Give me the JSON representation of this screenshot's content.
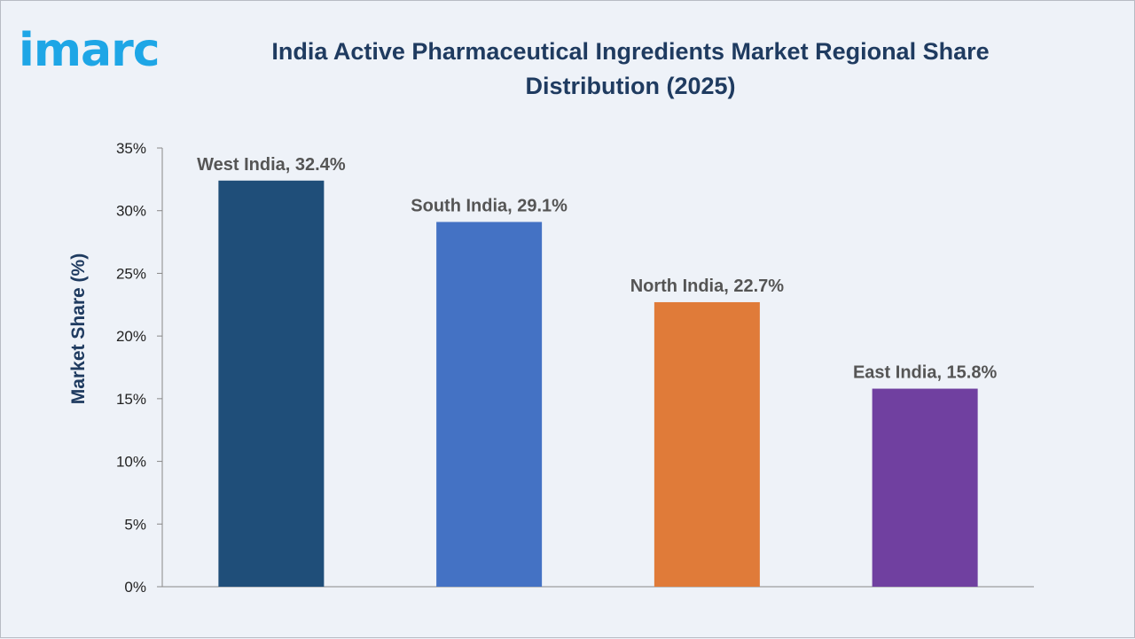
{
  "logo": {
    "text": "imarc"
  },
  "chart_data": {
    "type": "bar",
    "title": "India Active Pharmaceutical Ingredients Market Regional Share Distribution (2025)",
    "xlabel": "",
    "ylabel": "Market Share (%)",
    "ylim": [
      0,
      35
    ],
    "yticks": [
      0,
      5,
      10,
      15,
      20,
      25,
      30,
      35
    ],
    "ytick_suffix": "%",
    "grid": false,
    "legend": "none",
    "categories": [
      "West India",
      "South India",
      "North India",
      "East India"
    ],
    "values": [
      32.4,
      29.1,
      22.7,
      15.8
    ],
    "data_labels": [
      "West India, 32.4%",
      "South India, 29.1%",
      "North India, 22.7%",
      "East India, 15.8%"
    ],
    "colors": [
      "#1f4e79",
      "#4472c4",
      "#e07b39",
      "#7040a0"
    ]
  }
}
